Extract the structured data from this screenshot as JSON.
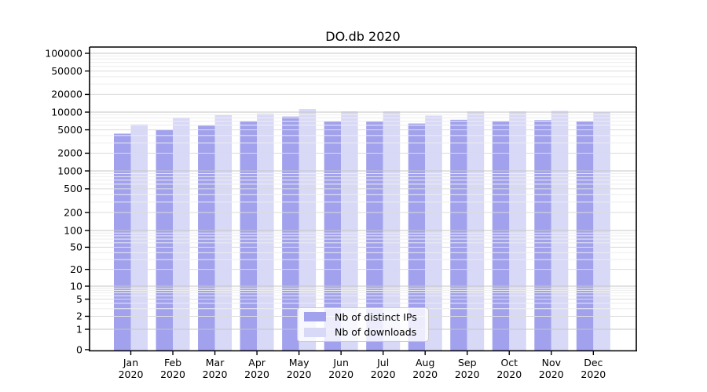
{
  "chart_data": {
    "type": "bar",
    "title": "DO.db 2020",
    "categories": [
      "Jan",
      "Feb",
      "Mar",
      "Apr",
      "May",
      "Jun",
      "Jul",
      "Aug",
      "Sep",
      "Oct",
      "Nov",
      "Dec"
    ],
    "year_label": "2020",
    "series": [
      {
        "name": "Nb of distinct IPs",
        "color": "#a1a1ed",
        "values": [
          4300,
          5000,
          5900,
          7100,
          8400,
          7000,
          6900,
          6400,
          7400,
          7100,
          7300,
          7000
        ]
      },
      {
        "name": "Nb of downloads",
        "color": "#d8d8f7",
        "values": [
          6200,
          8000,
          8900,
          9500,
          11300,
          10300,
          10300,
          8700,
          10300,
          10300,
          10500,
          9900
        ]
      }
    ],
    "yticks": [
      0,
      1,
      2,
      5,
      10,
      20,
      50,
      100,
      200,
      500,
      1000,
      2000,
      5000,
      10000,
      20000,
      50000,
      100000
    ],
    "yscale": "symlog",
    "ylim": [
      0,
      150000
    ],
    "grid": true,
    "legend_position": "lower center"
  },
  "colors": {
    "bar_dark": "#a1a1ed",
    "bar_light": "#d8d8f7",
    "grid_decade": "#c6c6c6",
    "grid_sub": "#dcdcdc",
    "grid_minor": "#eeeeee",
    "spine": "#000000",
    "background": "#ffffff",
    "text": "#000000"
  }
}
